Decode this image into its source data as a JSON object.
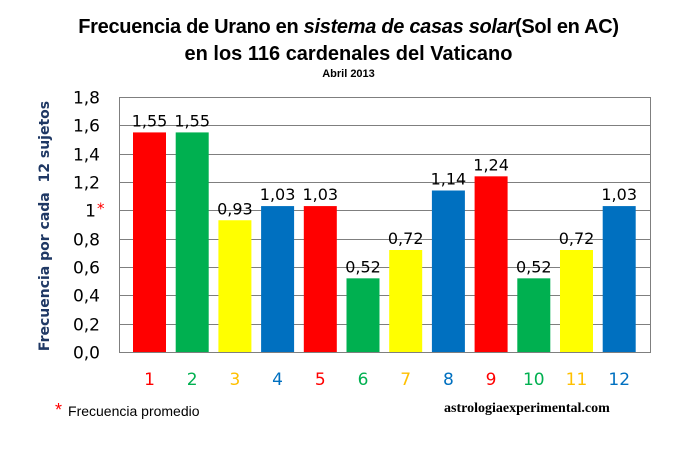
{
  "chart_data": {
    "type": "bar",
    "title_part1": "Frecuencia de Urano en ",
    "title_italic": "sistema de casas solar",
    "title_part2": "(Sol en AC)",
    "title_line2": "en los 116 cardenales del Vaticano",
    "subtitle": "Abril 2013",
    "ylabel": "Frecuencia por cada  12 sujetos",
    "xlabel": "",
    "categories": [
      "1",
      "2",
      "3",
      "4",
      "5",
      "6",
      "7",
      "8",
      "9",
      "10",
      "11",
      "12"
    ],
    "values": [
      1.55,
      1.55,
      0.93,
      1.03,
      1.03,
      0.52,
      0.72,
      1.14,
      1.24,
      0.52,
      0.72,
      1.03
    ],
    "data_labels": [
      "1,55",
      "1,55",
      "0,93",
      "1,03",
      "1,03",
      "0,52",
      "0,72",
      "1,14",
      "1,24",
      "0,52",
      "0,72",
      "1,03"
    ],
    "ylim": [
      0,
      1.8
    ],
    "yticks": [
      0,
      0.2,
      0.4,
      0.6,
      0.8,
      1,
      1.2,
      1.4,
      1.6,
      1.8
    ],
    "ytick_labels": [
      "0,0",
      "0,2",
      "0,4",
      "0,6",
      "0,8",
      "1",
      "1,2",
      "1,4",
      "1,6",
      "1,8"
    ],
    "ytick_marker": "*",
    "grid": true,
    "bar_colors": [
      "#ff0000",
      "#00b050",
      "#ffff00",
      "#0070c0",
      "#ff0000",
      "#00b050",
      "#ffff00",
      "#0070c0",
      "#ff0000",
      "#00b050",
      "#ffff00",
      "#0070c0"
    ],
    "category_label_colors": [
      "#ff0000",
      "#00b050",
      "#ffc000",
      "#0070c0",
      "#ff0000",
      "#00b050",
      "#ffc000",
      "#0070c0",
      "#ff0000",
      "#00b050",
      "#ffc000",
      "#0070c0"
    ]
  },
  "footnote": {
    "marker": "*",
    "text": "Frecuencia promedio"
  },
  "site": "astrologiaexperimental.com"
}
